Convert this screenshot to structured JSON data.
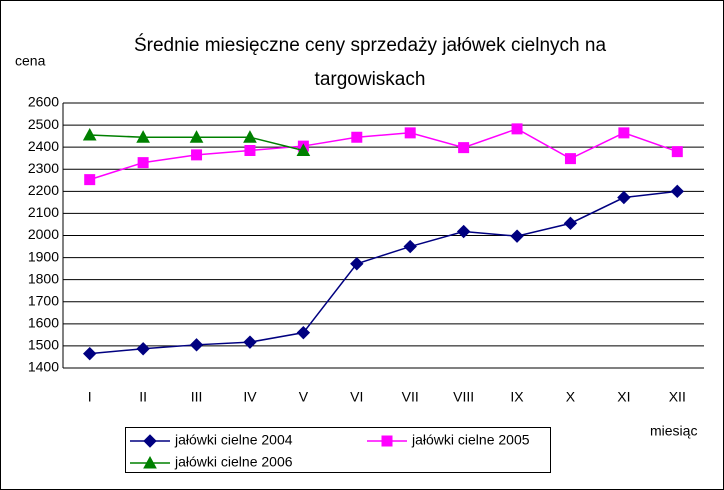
{
  "chart_data": {
    "type": "line",
    "title": [
      "Średnie miesięczne ceny sprzedaży jałówek cielnych na",
      "targowiskach"
    ],
    "y_label": "cena",
    "x_label": "miesiąc",
    "categories": [
      "I",
      "II",
      "III",
      "IV",
      "V",
      "VI",
      "VII",
      "VIII",
      "IX",
      "X",
      "XI",
      "XII"
    ],
    "series": [
      {
        "name": "jałówki cielne 2004",
        "color": "#000080",
        "marker": "diamond",
        "values": [
          1465,
          1487,
          1505,
          1517,
          1560,
          1872,
          1950,
          2018,
          1997,
          2055,
          2172,
          2200
        ]
      },
      {
        "name": "jałówki cielne 2005",
        "color": "#ff00ff",
        "marker": "square",
        "values": [
          2253,
          2330,
          2365,
          2385,
          2405,
          2445,
          2465,
          2398,
          2483,
          2348,
          2465,
          2380
        ]
      },
      {
        "name": "jałówki cielne 2006",
        "color": "#008000",
        "marker": "triangle",
        "values": [
          2455,
          2445,
          2445,
          2445,
          2385,
          null,
          null,
          null,
          null,
          null,
          null,
          null
        ]
      }
    ],
    "ylim": [
      1400,
      2600
    ],
    "yticks": [
      1400,
      1500,
      1600,
      1700,
      1800,
      1900,
      2000,
      2100,
      2200,
      2300,
      2400,
      2500,
      2600
    ],
    "grid": true
  }
}
